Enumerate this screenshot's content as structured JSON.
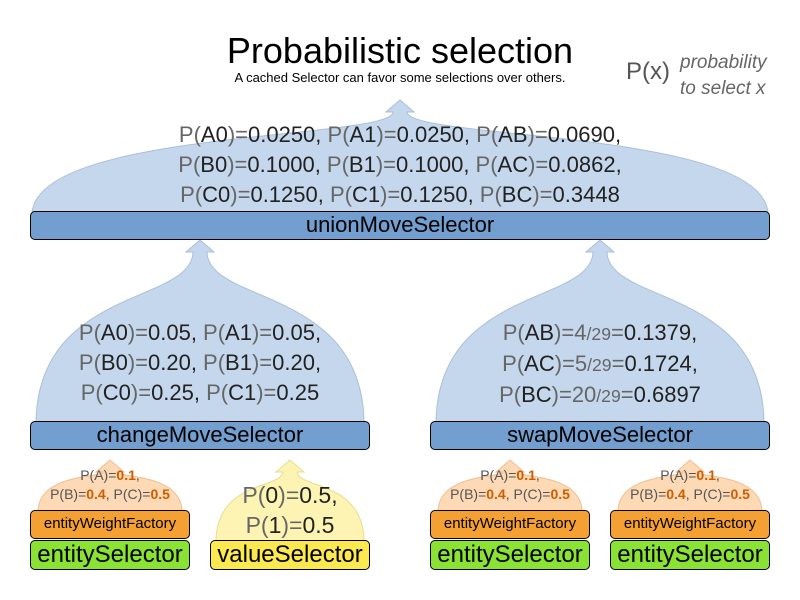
{
  "title": "Probabilistic selection",
  "subtitle": "A cached Selector can favor some selections over others.",
  "legend": {
    "symbol": "P(x)",
    "text_line1": "probability",
    "text_line2": "to select x"
  },
  "colors": {
    "blue_dome": "#c5d7ec",
    "blue_box": "#729fcf",
    "orange_dome": "#fdd9b5",
    "orange_box": "#f5a033",
    "yellow_dome": "#fdf4b4",
    "yellow_box": "#fce94f",
    "green_box": "#8ae234",
    "weight_value": "#ce5c00"
  },
  "union": {
    "label": "unionMoveSelector",
    "lines": [
      "P(A0)=0.0250, P(A1)=0.0250, P(AB)=0.0690,",
      "P(B0)=0.1000, P(B1)=0.1000, P(AC)=0.0862,",
      "P(C0)=0.1250, P(C1)=0.1250, P(BC)=0.3448"
    ]
  },
  "change": {
    "label": "changeMoveSelector",
    "lines": [
      "P(A0)=0.05, P(A1)=0.05,",
      "P(B0)=0.20, P(B1)=0.20,",
      "P(C0)=0.25, P(C1)=0.25"
    ]
  },
  "swap": {
    "label": "swapMoveSelector",
    "lines": [
      "P(AB)=4/29=0.1379,",
      "P(AC)=5/29=0.1724,",
      "P(BC)=20/29=0.6897"
    ]
  },
  "weights": {
    "pa": "P(A)=",
    "va": "0.1",
    "pb": "P(B)=",
    "vb": "0.4",
    "pc": "P(C)=",
    "vc": "0.5"
  },
  "entity_weight_factory": "entityWeightFactory",
  "entity_selector": "entitySelector",
  "value": {
    "label": "valueSelector",
    "lines": [
      "P(0)=0.5,",
      "P(1)=0.5"
    ]
  }
}
